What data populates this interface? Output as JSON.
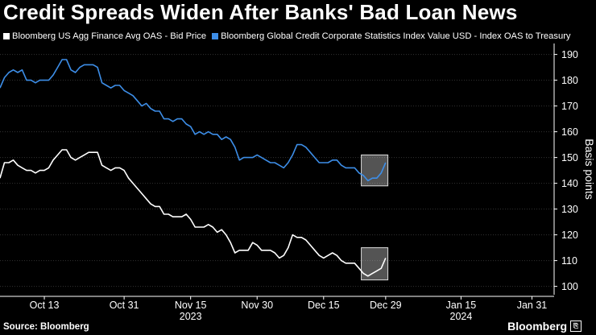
{
  "title": "Credit Spreads Widen After Banks' Bad Loan News",
  "legend": [
    {
      "label": "Bloomberg US Agg Finance Avg OAS - Bid Price",
      "color": "#ffffff"
    },
    {
      "label": "Bloomberg Global Credit Corporate Statistics Index Value USD - Index OAS to Treasury",
      "color": "#3d8ee8"
    }
  ],
  "source": "Source: Bloomberg",
  "brand": "Bloomberg",
  "brand_icon": "bloomberg-terminal-icon",
  "chart_data": {
    "type": "line",
    "ylabel": "Basis points",
    "ylim": [
      98,
      193
    ],
    "yticks": [
      100,
      110,
      120,
      130,
      140,
      150,
      160,
      170,
      180,
      190
    ],
    "x_tick_labels": [
      {
        "label": "Oct 13",
        "sub": ""
      },
      {
        "label": "Oct 31",
        "sub": ""
      },
      {
        "label": "Nov 15",
        "sub": "2023"
      },
      {
        "label": "Nov 30",
        "sub": ""
      },
      {
        "label": "Dec 15",
        "sub": ""
      },
      {
        "label": "Dec 29",
        "sub": ""
      },
      {
        "label": "Jan 15",
        "sub": "2024"
      },
      {
        "label": "Jan 31",
        "sub": ""
      }
    ],
    "x_tick_days": [
      13,
      31,
      46,
      61,
      76,
      90,
      107,
      123
    ],
    "xlim": [
      3,
      128
    ],
    "series": [
      {
        "name": "Bloomberg US Agg Finance Avg OAS - Bid Price",
        "color": "#ffffff",
        "points": [
          [
            3,
            142
          ],
          [
            4,
            148
          ],
          [
            5,
            148
          ],
          [
            6,
            149
          ],
          [
            7,
            147
          ],
          [
            8,
            146
          ],
          [
            9,
            145
          ],
          [
            10,
            145
          ],
          [
            11,
            144
          ],
          [
            12,
            145
          ],
          [
            13,
            145
          ],
          [
            14,
            146
          ],
          [
            15,
            149
          ],
          [
            16,
            151
          ],
          [
            17,
            153
          ],
          [
            18,
            153
          ],
          [
            19,
            150
          ],
          [
            20,
            149
          ],
          [
            21,
            150
          ],
          [
            22,
            151
          ],
          [
            23,
            152
          ],
          [
            24,
            152
          ],
          [
            25,
            152
          ],
          [
            26,
            147
          ],
          [
            27,
            146
          ],
          [
            28,
            145
          ],
          [
            29,
            146
          ],
          [
            30,
            146
          ],
          [
            31,
            145
          ],
          [
            32,
            142
          ],
          [
            33,
            140
          ],
          [
            34,
            138
          ],
          [
            35,
            136
          ],
          [
            36,
            134
          ],
          [
            37,
            132
          ],
          [
            38,
            131
          ],
          [
            39,
            131
          ],
          [
            40,
            128
          ],
          [
            41,
            128
          ],
          [
            42,
            127
          ],
          [
            43,
            127
          ],
          [
            44,
            127
          ],
          [
            45,
            128
          ],
          [
            46,
            126
          ],
          [
            47,
            123
          ],
          [
            48,
            123
          ],
          [
            49,
            123
          ],
          [
            50,
            124
          ],
          [
            51,
            123
          ],
          [
            52,
            121
          ],
          [
            53,
            122
          ],
          [
            54,
            120
          ],
          [
            55,
            117
          ],
          [
            56,
            113
          ],
          [
            57,
            114
          ],
          [
            58,
            114
          ],
          [
            59,
            114
          ],
          [
            60,
            117
          ],
          [
            61,
            116
          ],
          [
            62,
            114
          ],
          [
            63,
            114
          ],
          [
            64,
            114
          ],
          [
            65,
            113
          ],
          [
            66,
            111
          ],
          [
            67,
            112
          ],
          [
            68,
            115
          ],
          [
            69,
            120
          ],
          [
            70,
            119
          ],
          [
            71,
            119
          ],
          [
            72,
            118
          ],
          [
            73,
            116
          ],
          [
            74,
            114
          ],
          [
            75,
            112
          ],
          [
            76,
            111
          ],
          [
            77,
            112
          ],
          [
            78,
            113
          ],
          [
            79,
            112
          ],
          [
            80,
            110
          ],
          [
            81,
            109
          ],
          [
            82,
            109
          ],
          [
            83,
            109
          ],
          [
            84,
            107
          ],
          [
            85,
            105
          ],
          [
            86,
            104
          ],
          [
            87,
            105
          ],
          [
            88,
            106
          ],
          [
            89,
            107
          ],
          [
            90,
            111
          ]
        ]
      },
      {
        "name": "Bloomberg Global Credit Corporate Statistics Index Value USD - Index OAS to Treasury",
        "color": "#3d8ee8",
        "points": [
          [
            3,
            177
          ],
          [
            4,
            181
          ],
          [
            5,
            183
          ],
          [
            6,
            184
          ],
          [
            7,
            183
          ],
          [
            8,
            184
          ],
          [
            9,
            180
          ],
          [
            10,
            180
          ],
          [
            11,
            179
          ],
          [
            12,
            180
          ],
          [
            13,
            180
          ],
          [
            14,
            180
          ],
          [
            15,
            182
          ],
          [
            16,
            185
          ],
          [
            17,
            188
          ],
          [
            18,
            188
          ],
          [
            19,
            184
          ],
          [
            20,
            183
          ],
          [
            21,
            185
          ],
          [
            22,
            186
          ],
          [
            23,
            186
          ],
          [
            24,
            186
          ],
          [
            25,
            185
          ],
          [
            26,
            179
          ],
          [
            27,
            178
          ],
          [
            28,
            177
          ],
          [
            29,
            178
          ],
          [
            30,
            178
          ],
          [
            31,
            176
          ],
          [
            32,
            175
          ],
          [
            33,
            174
          ],
          [
            34,
            172
          ],
          [
            35,
            170
          ],
          [
            36,
            171
          ],
          [
            37,
            169
          ],
          [
            38,
            168
          ],
          [
            39,
            168
          ],
          [
            40,
            165
          ],
          [
            41,
            165
          ],
          [
            42,
            164
          ],
          [
            43,
            165
          ],
          [
            44,
            165
          ],
          [
            45,
            163
          ],
          [
            46,
            162
          ],
          [
            47,
            159
          ],
          [
            48,
            160
          ],
          [
            49,
            159
          ],
          [
            50,
            160
          ],
          [
            51,
            159
          ],
          [
            52,
            159
          ],
          [
            53,
            157
          ],
          [
            54,
            158
          ],
          [
            55,
            157
          ],
          [
            56,
            154
          ],
          [
            57,
            149
          ],
          [
            58,
            150
          ],
          [
            59,
            150
          ],
          [
            60,
            150
          ],
          [
            61,
            151
          ],
          [
            62,
            150
          ],
          [
            63,
            149
          ],
          [
            64,
            148
          ],
          [
            65,
            148
          ],
          [
            66,
            147
          ],
          [
            67,
            146
          ],
          [
            68,
            148
          ],
          [
            69,
            151
          ],
          [
            70,
            155
          ],
          [
            71,
            155
          ],
          [
            72,
            154
          ],
          [
            73,
            152
          ],
          [
            74,
            150
          ],
          [
            75,
            148
          ],
          [
            76,
            148
          ],
          [
            77,
            148
          ],
          [
            78,
            149
          ],
          [
            79,
            149
          ],
          [
            80,
            147
          ],
          [
            81,
            146
          ],
          [
            82,
            146
          ],
          [
            83,
            146
          ],
          [
            84,
            144
          ],
          [
            85,
            143
          ],
          [
            86,
            141
          ],
          [
            87,
            142
          ],
          [
            88,
            142
          ],
          [
            89,
            144
          ],
          [
            90,
            148
          ]
        ]
      }
    ],
    "highlight_boxes": [
      {
        "x_range": [
          84.5,
          90.5
        ],
        "y_range": [
          139,
          151
        ]
      },
      {
        "x_range": [
          84.5,
          90.5
        ],
        "y_range": [
          102.5,
          115
        ]
      }
    ]
  }
}
